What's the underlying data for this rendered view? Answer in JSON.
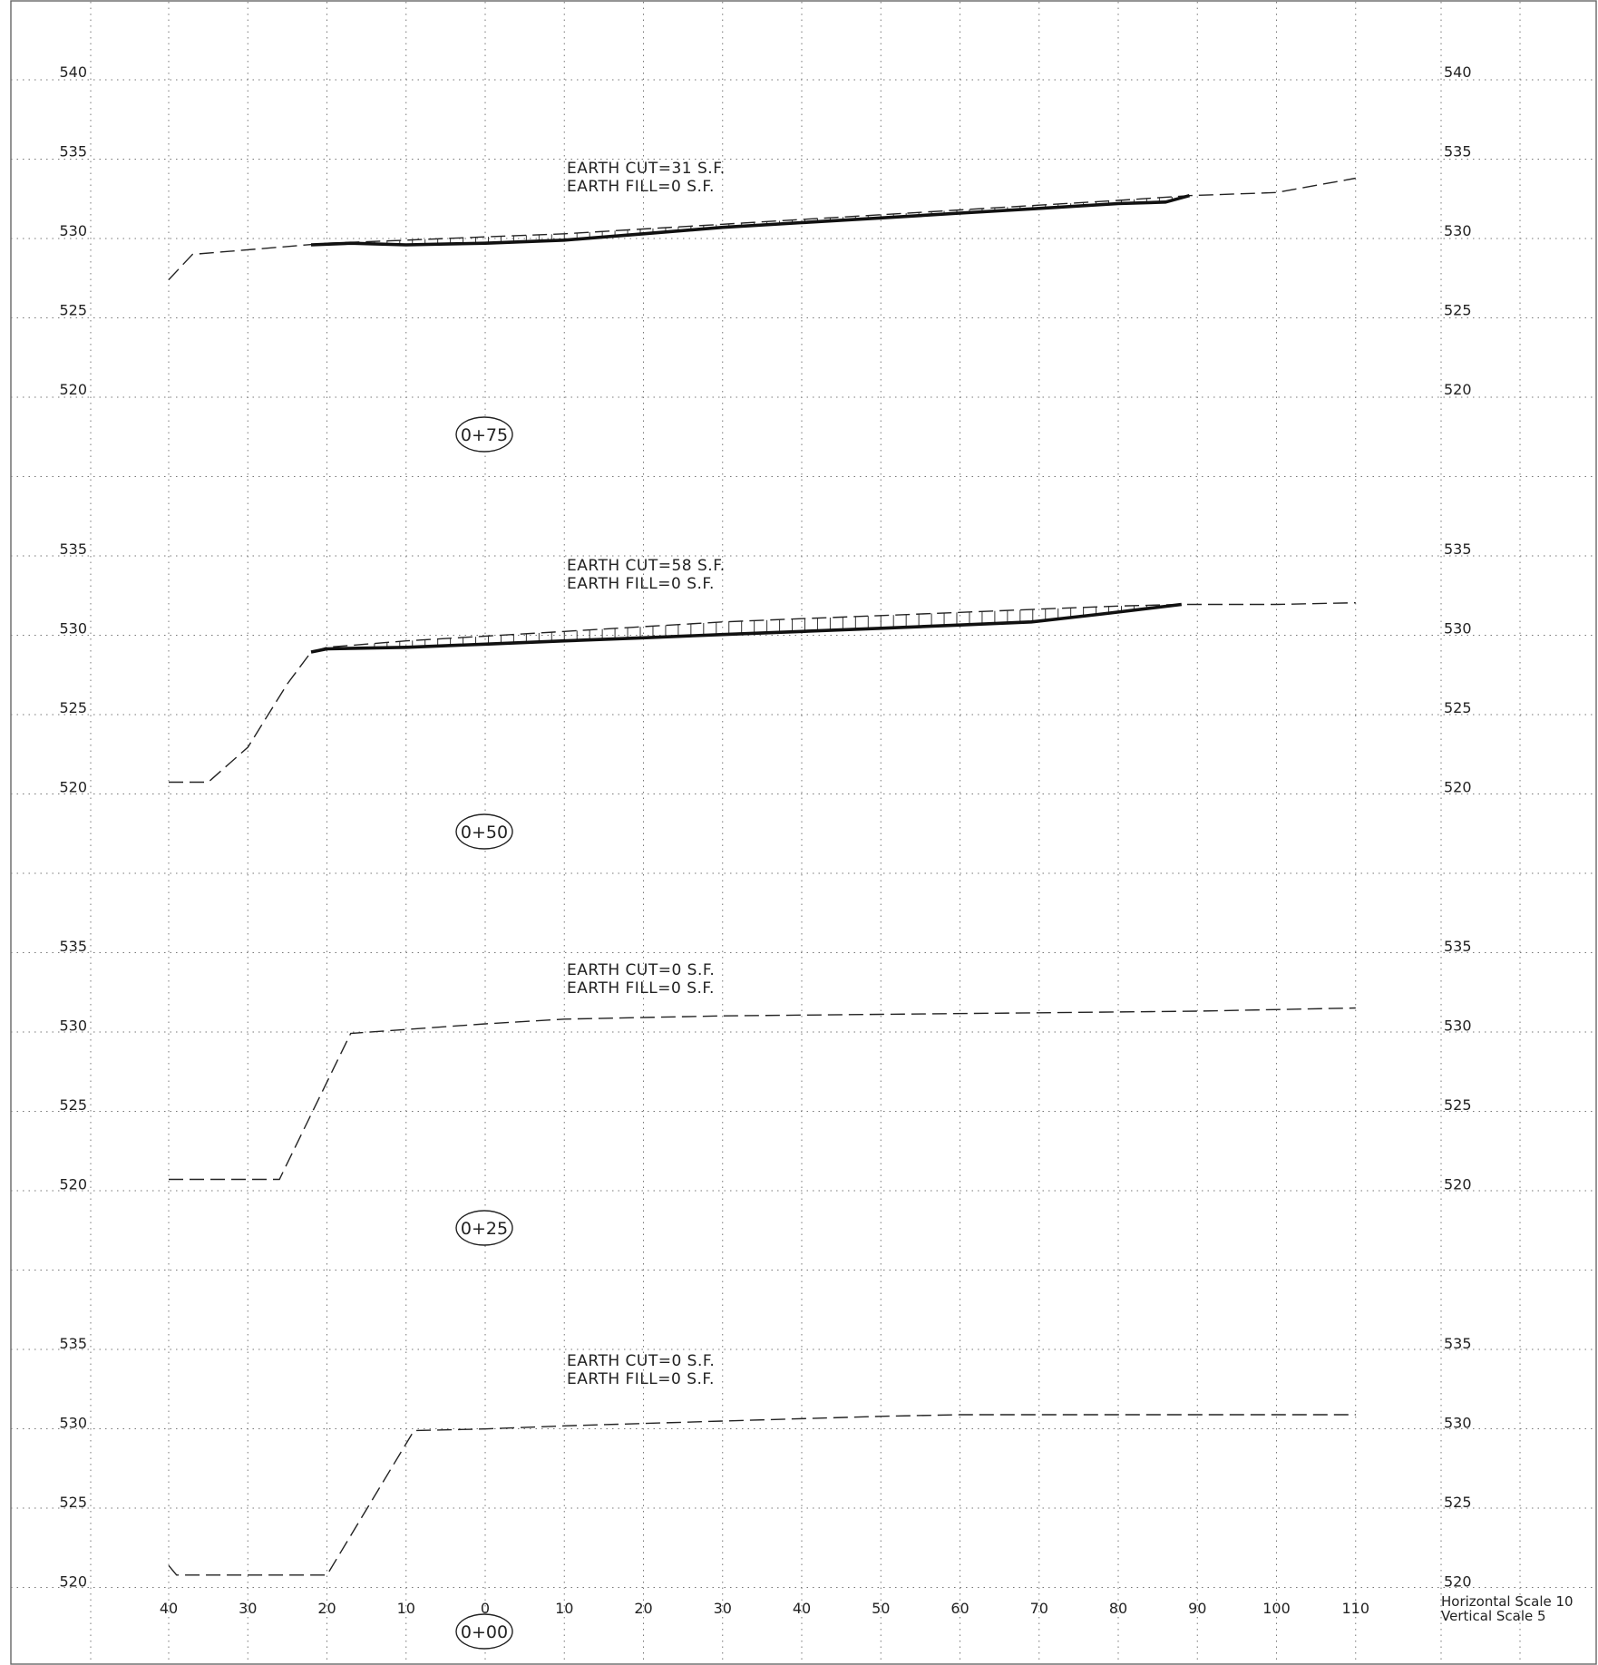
{
  "grid": {
    "offset_min": -40,
    "offset_max": 110,
    "offset_labels": [
      "40",
      "30",
      "20",
      "10",
      "0",
      "10",
      "20",
      "30",
      "40",
      "50",
      "60",
      "70",
      "80",
      "90",
      "100",
      "110"
    ]
  },
  "sections": [
    {
      "station": "0+75",
      "cut_text": "EARTH  CUT=31  S.F.",
      "fill_text": "EARTH  FILL=0  S.F.",
      "elevation_labels": [
        "540",
        "535",
        "530",
        "525",
        "520"
      ],
      "elev_top": 540,
      "existing_ground": [
        [
          -40,
          527.4
        ],
        [
          -37,
          529.0
        ],
        [
          -20,
          529.7
        ],
        [
          -10,
          529.9
        ],
        [
          0,
          530.1
        ],
        [
          10,
          530.3
        ],
        [
          20,
          530.6
        ],
        [
          30,
          530.9
        ],
        [
          40,
          531.2
        ],
        [
          50,
          531.5
        ],
        [
          60,
          531.8
        ],
        [
          70,
          532.1
        ],
        [
          80,
          532.4
        ],
        [
          89,
          532.7
        ],
        [
          100,
          532.9
        ],
        [
          110,
          533.8
        ]
      ],
      "design_line": [
        [
          -22,
          529.6
        ],
        [
          -17,
          529.7
        ],
        [
          -10,
          529.6
        ],
        [
          0,
          529.7
        ],
        [
          10,
          529.9
        ],
        [
          20,
          530.3
        ],
        [
          30,
          530.7
        ],
        [
          40,
          531.0
        ],
        [
          50,
          531.3
        ],
        [
          60,
          531.6
        ],
        [
          70,
          531.9
        ],
        [
          80,
          532.2
        ],
        [
          86,
          532.3
        ],
        [
          89,
          532.7
        ]
      ]
    },
    {
      "station": "0+50",
      "cut_text": "EARTH  CUT=58  S.F.",
      "fill_text": "EARTH  FILL=0  S.F.",
      "elevation_labels": [
        "535",
        "530",
        "525",
        "520"
      ],
      "elev_top": 535,
      "existing_ground": [
        [
          -40,
          520.8
        ],
        [
          -35,
          520.8
        ],
        [
          -30,
          523.0
        ],
        [
          -25,
          527.0
        ],
        [
          -22,
          529.0
        ],
        [
          -20,
          529.3
        ],
        [
          -10,
          529.7
        ],
        [
          0,
          530.0
        ],
        [
          10,
          530.3
        ],
        [
          20,
          530.6
        ],
        [
          30,
          530.9
        ],
        [
          40,
          531.1
        ],
        [
          50,
          531.3
        ],
        [
          60,
          531.5
        ],
        [
          70,
          531.7
        ],
        [
          80,
          531.9
        ],
        [
          88,
          532.0
        ],
        [
          100,
          532.0
        ],
        [
          110,
          532.1
        ]
      ],
      "design_line": [
        [
          -22,
          529.0
        ],
        [
          -20,
          529.2
        ],
        [
          -10,
          529.3
        ],
        [
          0,
          529.5
        ],
        [
          10,
          529.7
        ],
        [
          20,
          529.9
        ],
        [
          30,
          530.1
        ],
        [
          40,
          530.3
        ],
        [
          50,
          530.5
        ],
        [
          60,
          530.7
        ],
        [
          69,
          530.9
        ],
        [
          78,
          531.4
        ],
        [
          88,
          532.0
        ]
      ]
    },
    {
      "station": "0+25",
      "cut_text": "EARTH  CUT=0  S.F.",
      "fill_text": "EARTH  FILL=0  S.F.",
      "elevation_labels": [
        "535",
        "530",
        "525",
        "520"
      ],
      "elev_top": 535,
      "existing_ground": [
        [
          -40,
          520.8
        ],
        [
          -26,
          520.8
        ],
        [
          -17,
          530.0
        ],
        [
          0,
          530.6
        ],
        [
          10,
          530.9
        ],
        [
          30,
          531.1
        ],
        [
          50,
          531.2
        ],
        [
          70,
          531.3
        ],
        [
          90,
          531.4
        ],
        [
          110,
          531.6
        ]
      ],
      "design_line": []
    },
    {
      "station": "0+00",
      "cut_text": "EARTH  CUT=0  S.F.",
      "fill_text": "EARTH  FILL=0  S.F.",
      "elevation_labels": [
        "535",
        "530",
        "525",
        "520"
      ],
      "elev_top": 535,
      "existing_ground": [
        [
          -40,
          521.5
        ],
        [
          -39,
          520.9
        ],
        [
          -20,
          520.9
        ],
        [
          -9,
          530.0
        ],
        [
          0,
          530.1
        ],
        [
          10,
          530.3
        ],
        [
          30,
          530.6
        ],
        [
          50,
          530.9
        ],
        [
          60,
          531.0
        ],
        [
          80,
          531.0
        ],
        [
          110,
          531.0
        ]
      ],
      "design_line": []
    }
  ],
  "scale_note": {
    "horizontal": "Horizontal  Scale  10",
    "vertical": "Vertical  Scale  5"
  }
}
